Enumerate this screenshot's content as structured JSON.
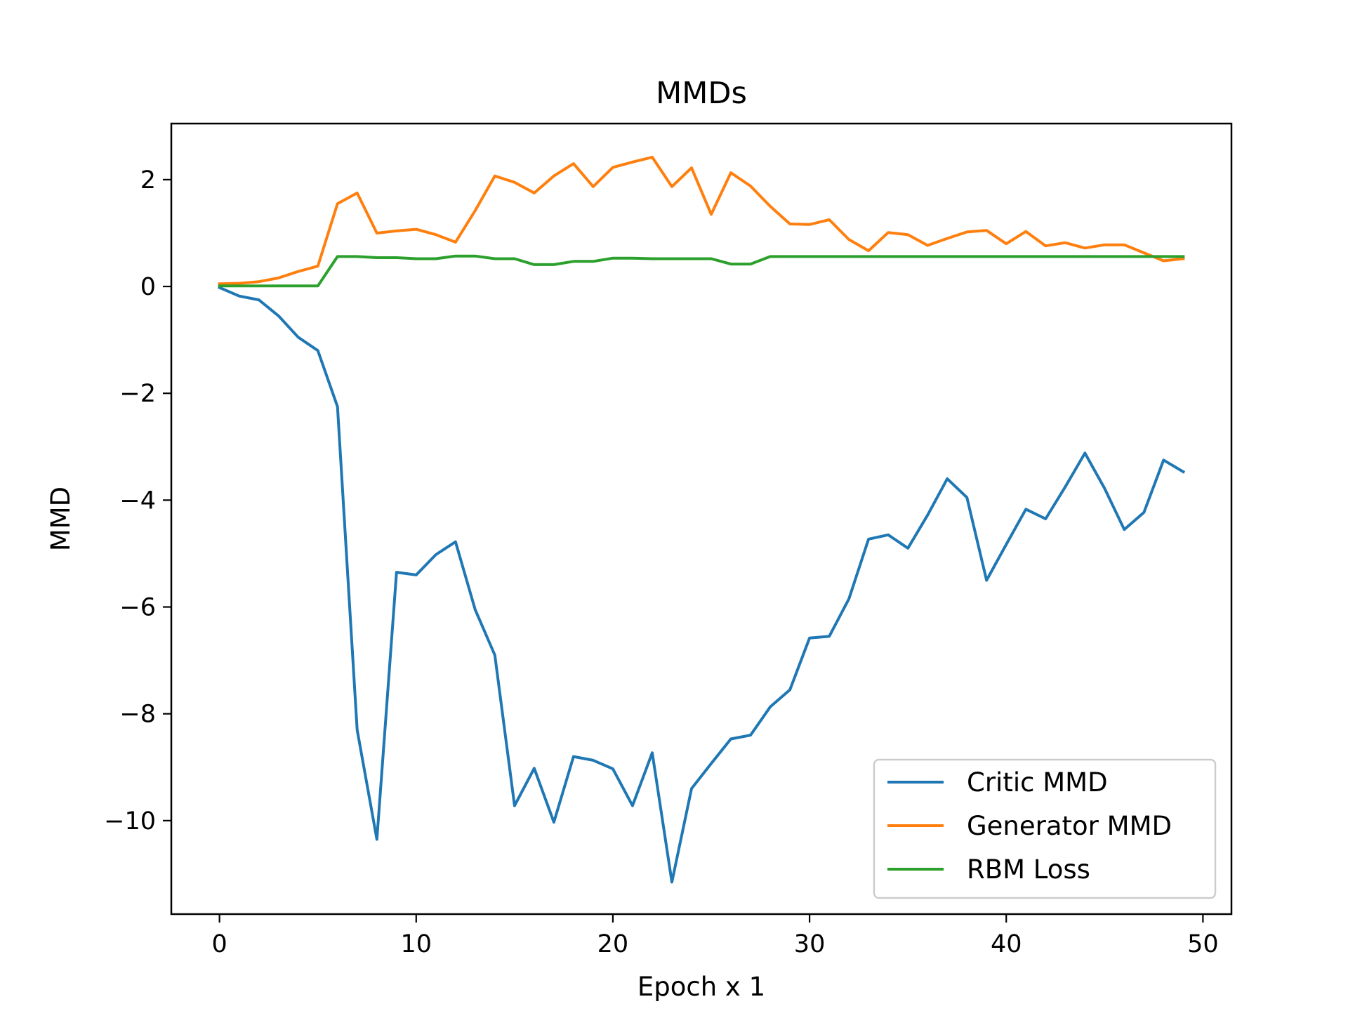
{
  "chart_data": {
    "type": "line",
    "title": "MMDs",
    "xlabel": "Epoch x 1",
    "ylabel": "MMD",
    "xlim": [
      -2.45,
      51.45
    ],
    "ylim": [
      -11.75,
      3.05
    ],
    "xticks": [
      0,
      10,
      20,
      30,
      40,
      50
    ],
    "yticks": [
      2,
      0,
      -2,
      -4,
      -6,
      -8,
      -10
    ],
    "xtick_labels": [
      "0",
      "10",
      "20",
      "30",
      "40",
      "50"
    ],
    "ytick_labels": [
      "2",
      "0",
      "−2",
      "−4",
      "−6",
      "−8",
      "−10"
    ],
    "grid": false,
    "legend_position": "lower right",
    "x": [
      0,
      1,
      2,
      3,
      4,
      5,
      6,
      7,
      8,
      9,
      10,
      11,
      12,
      13,
      14,
      15,
      16,
      17,
      18,
      19,
      20,
      21,
      22,
      23,
      24,
      25,
      26,
      27,
      28,
      29,
      30,
      31,
      32,
      33,
      34,
      35,
      36,
      37,
      38,
      39,
      40,
      41,
      42,
      43,
      44,
      45,
      46,
      47,
      48,
      49
    ],
    "series": [
      {
        "name": "Critic MMD",
        "color": "#1f77b4",
        "values": [
          -0.02,
          -0.18,
          -0.25,
          -0.55,
          -0.95,
          -1.2,
          -2.25,
          -8.3,
          -10.35,
          -5.35,
          -5.4,
          -5.02,
          -4.78,
          -6.05,
          -6.9,
          -9.72,
          -9.02,
          -10.03,
          -8.8,
          -8.87,
          -9.03,
          -9.72,
          -8.73,
          -11.15,
          -9.4,
          -8.93,
          -8.47,
          -8.4,
          -7.87,
          -7.55,
          -6.58,
          -6.55,
          -5.85,
          -4.73,
          -4.65,
          -4.9,
          -4.28,
          -3.6,
          -3.95,
          -5.5,
          -4.83,
          -4.17,
          -4.35,
          -3.75,
          -3.12,
          -3.78,
          -4.55,
          -4.23,
          -3.25,
          -3.47
        ]
      },
      {
        "name": "Generator MMD",
        "color": "#ff7f0e",
        "values": [
          0.05,
          0.06,
          0.09,
          0.16,
          0.28,
          0.38,
          1.55,
          1.75,
          1.0,
          1.04,
          1.07,
          0.97,
          0.83,
          1.42,
          2.07,
          1.95,
          1.75,
          2.07,
          2.3,
          1.87,
          2.23,
          2.33,
          2.42,
          1.87,
          2.22,
          1.35,
          2.13,
          1.88,
          1.5,
          1.17,
          1.16,
          1.25,
          0.88,
          0.67,
          1.01,
          0.97,
          0.77,
          0.9,
          1.02,
          1.05,
          0.8,
          1.03,
          0.76,
          0.82,
          0.72,
          0.78,
          0.78,
          0.63,
          0.48,
          0.52
        ]
      },
      {
        "name": "RBM Loss",
        "color": "#2ca02c",
        "values": [
          0.01,
          0.01,
          0.01,
          0.01,
          0.01,
          0.01,
          0.56,
          0.56,
          0.54,
          0.54,
          0.52,
          0.52,
          0.57,
          0.57,
          0.52,
          0.52,
          0.41,
          0.41,
          0.47,
          0.47,
          0.53,
          0.53,
          0.52,
          0.52,
          0.52,
          0.52,
          0.42,
          0.42,
          0.56,
          0.56,
          0.56,
          0.56,
          0.56,
          0.56,
          0.56,
          0.56,
          0.56,
          0.56,
          0.56,
          0.56,
          0.56,
          0.56,
          0.56,
          0.56,
          0.56,
          0.56,
          0.56,
          0.56,
          0.56,
          0.56
        ]
      }
    ]
  }
}
